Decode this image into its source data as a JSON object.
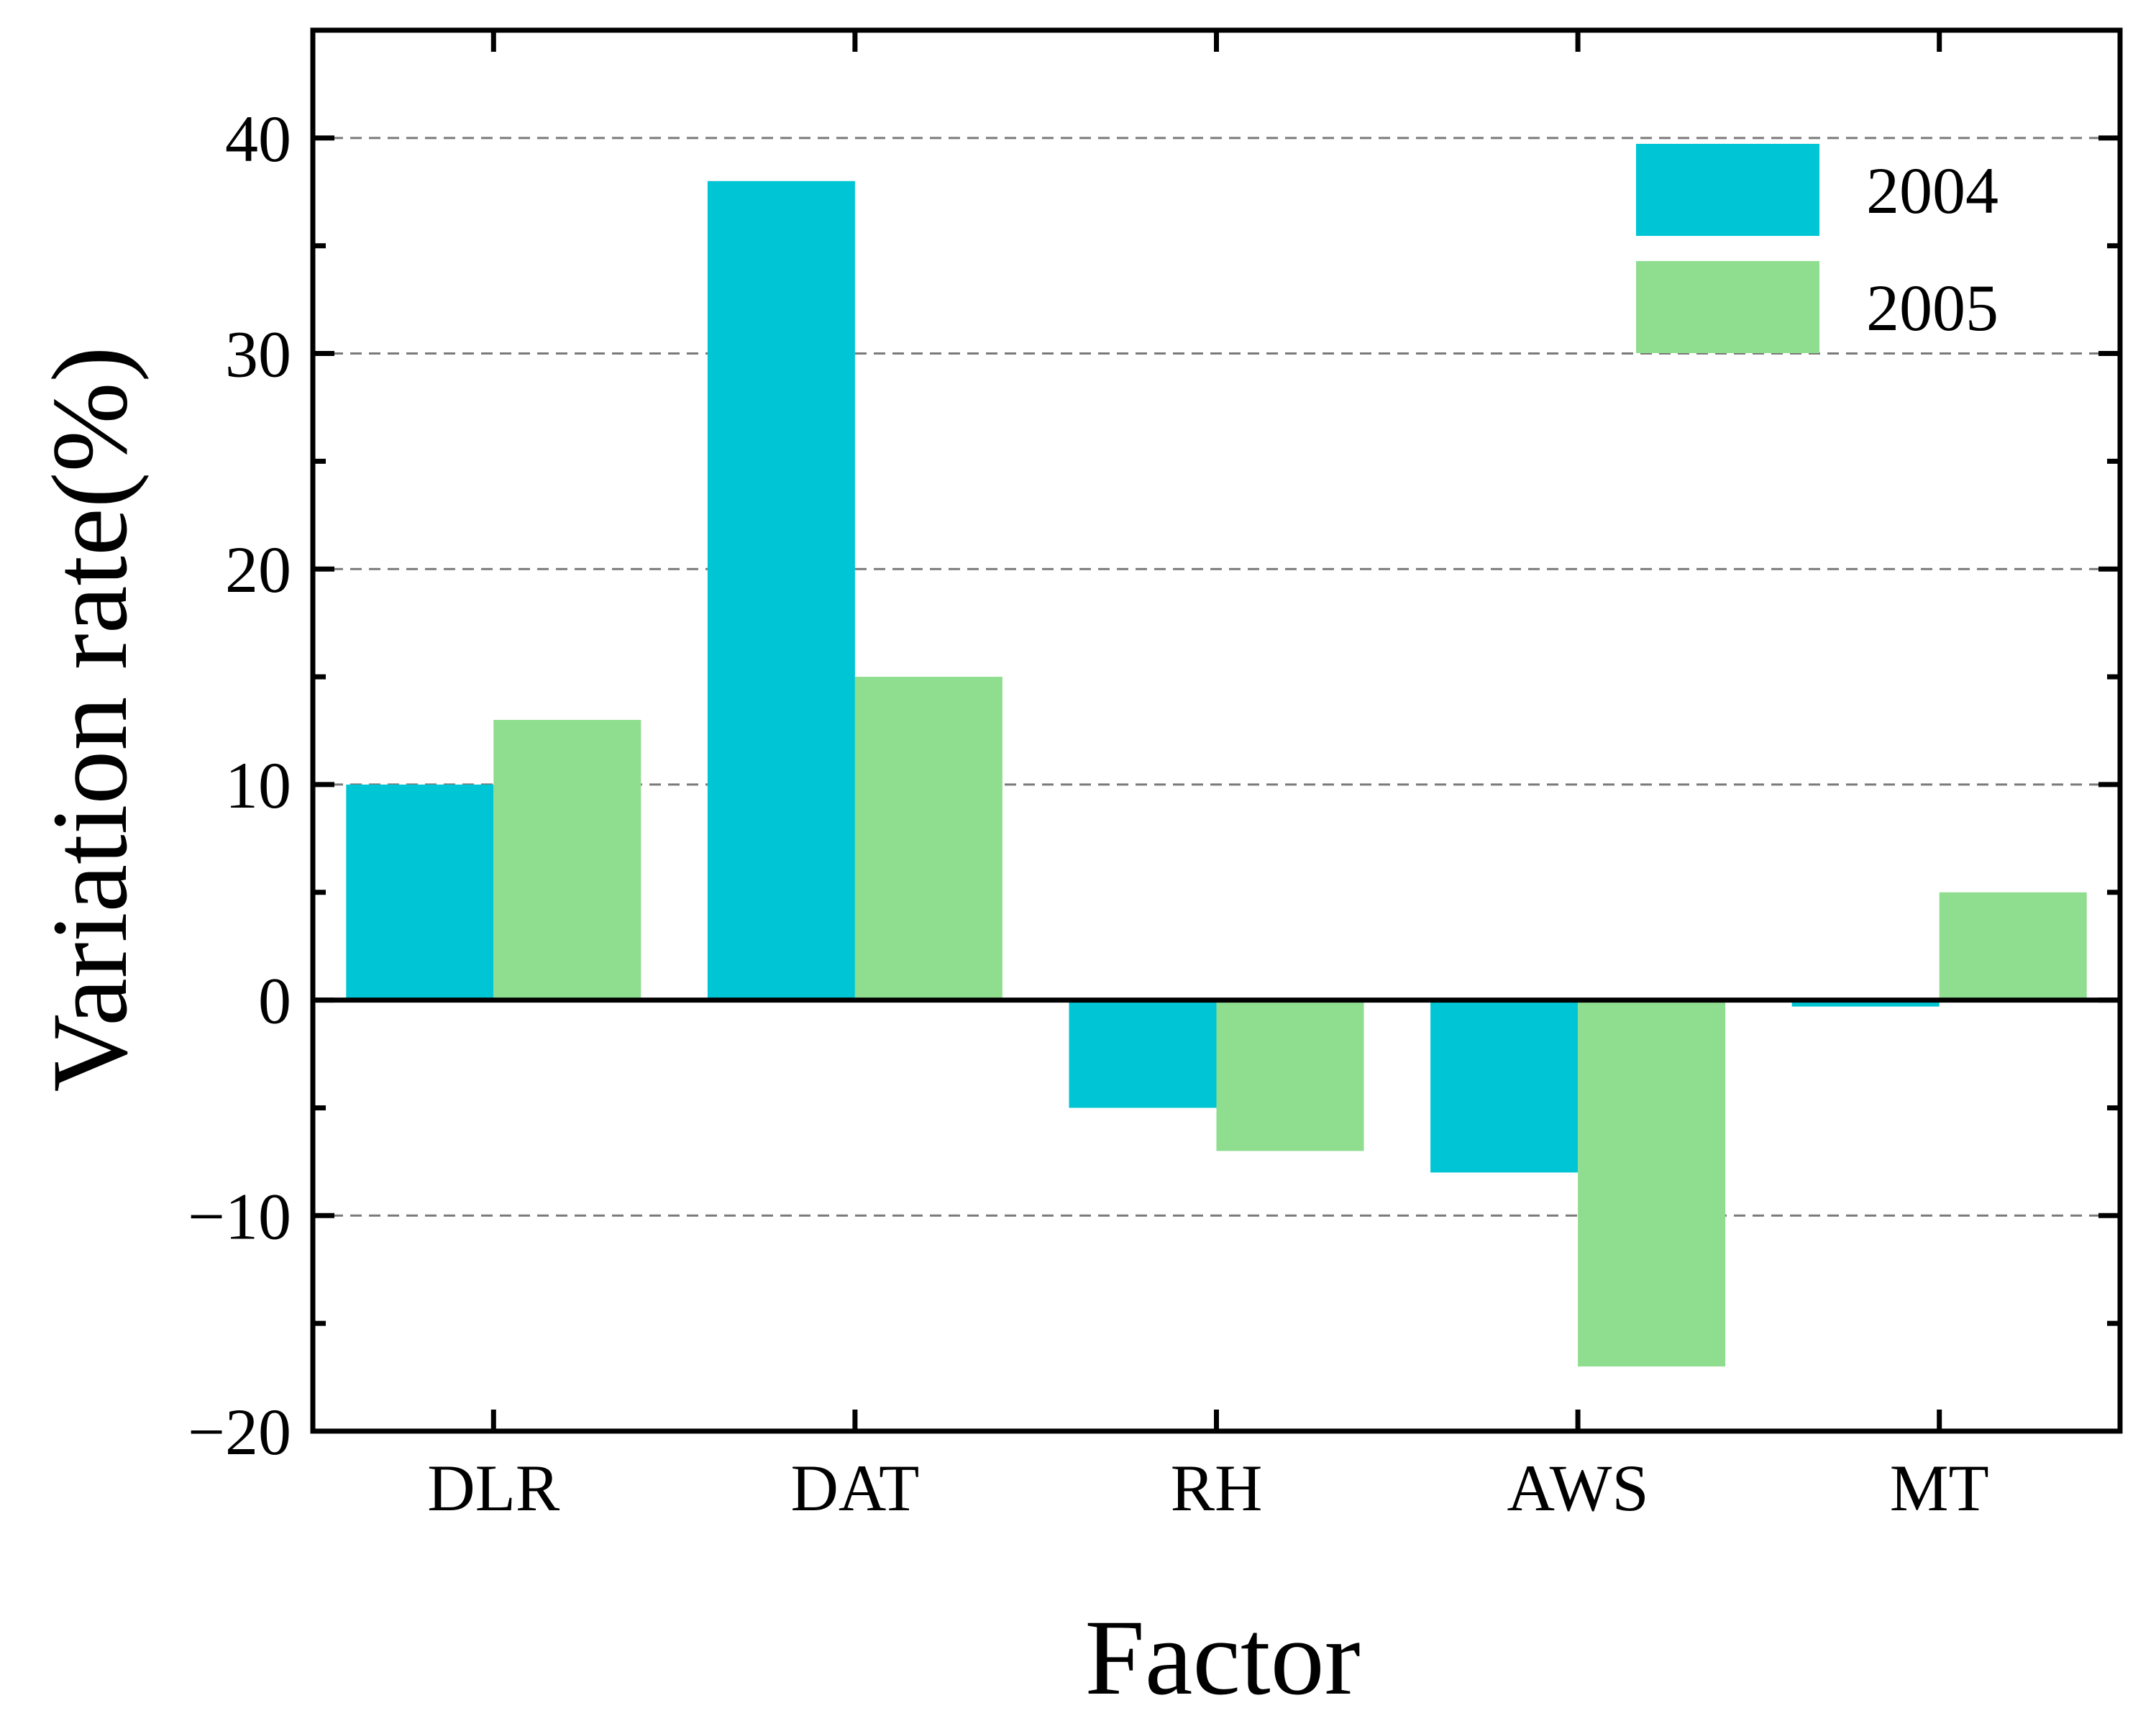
{
  "chart_data": {
    "type": "bar",
    "title": "",
    "xlabel": "Factor",
    "ylabel": "Variation rate(%)",
    "categories": [
      "DLR",
      "DAT",
      "RH",
      "AWS",
      "MT"
    ],
    "series": [
      {
        "name": "2004",
        "color": "#00C5D4",
        "values": [
          10,
          38,
          -5,
          -8,
          -0.3
        ]
      },
      {
        "name": "2005",
        "color": "#8FDD8F",
        "values": [
          13,
          15,
          -7,
          -17,
          5
        ]
      }
    ],
    "ylim": [
      -20,
      45
    ],
    "yticks": [
      -20,
      -10,
      0,
      10,
      20,
      30,
      40
    ],
    "ytick_labels": [
      "−20",
      "−10",
      "0",
      "10",
      "20",
      "30",
      "40"
    ],
    "grid": "dashed horizontal at major ticks",
    "legend_position": "top-right"
  }
}
